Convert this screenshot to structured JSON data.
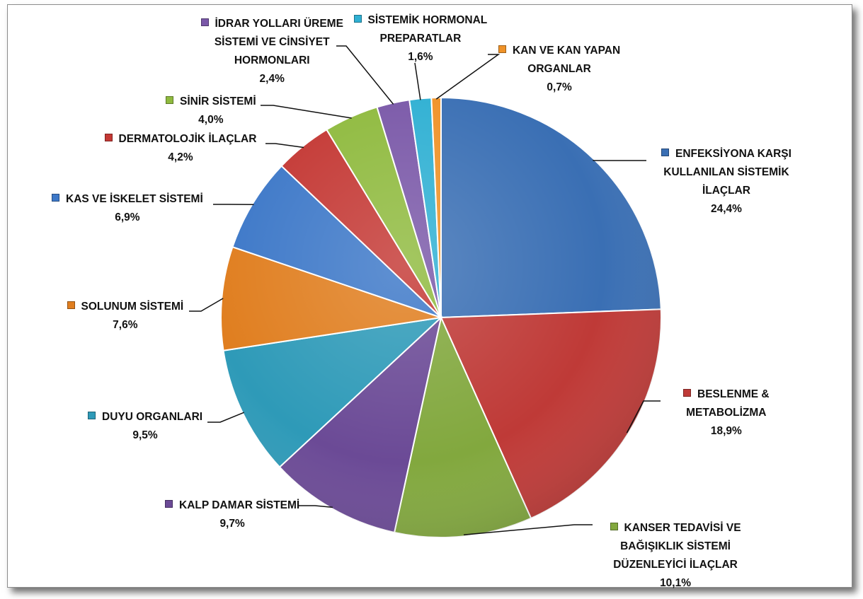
{
  "chart_data": {
    "type": "pie",
    "title": "",
    "slices": [
      {
        "name": "ENFEKSİYONA KARŞI KULLANILAN SİSTEMİK İLAÇLAR",
        "lines": [
          "ENFEKSİYONA KARŞI",
          "KULLANILAN SİSTEMİK",
          "İLAÇLAR"
        ],
        "value": 24.4,
        "pct_label": "24,4%",
        "color": "#3a6fb4"
      },
      {
        "name": "BESLENME & METABOLİZMA",
        "lines": [
          "BESLENME &",
          "METABOLİZMA"
        ],
        "value": 18.9,
        "pct_label": "18,9%",
        "color": "#bf3a37"
      },
      {
        "name": "KANSER TEDAVİSİ VE BAĞIŞIKLIK SİSTEMİ DÜZENLEYİCİ İLAÇLAR",
        "lines": [
          "KANSER TEDAVİSİ VE",
          "BAĞIŞIKLIK SİSTEMİ",
          "DÜZENLEYİCİ İLAÇLAR"
        ],
        "value": 10.1,
        "pct_label": "10,1%",
        "color": "#82a83e"
      },
      {
        "name": "KALP DAMAR SİSTEMİ",
        "lines": [
          "KALP DAMAR SİSTEMİ"
        ],
        "value": 9.7,
        "pct_label": "9,7%",
        "color": "#6b4a96"
      },
      {
        "name": "DUYU ORGANLARI",
        "lines": [
          "DUYU ORGANLARI"
        ],
        "value": 9.5,
        "pct_label": "9,5%",
        "color": "#2e9ab8"
      },
      {
        "name": "SOLUNUM SİSTEMİ",
        "lines": [
          "SOLUNUM SİSTEMİ"
        ],
        "value": 7.6,
        "pct_label": "7,6%",
        "color": "#e07e1f"
      },
      {
        "name": "KAS VE İSKELET SİSTEMİ",
        "lines": [
          "KAS VE İSKELET SİSTEMİ"
        ],
        "value": 6.9,
        "pct_label": "6,9%",
        "color": "#3d78c8"
      },
      {
        "name": "DERMATOLOJİK İLAÇLAR",
        "lines": [
          "DERMATOLOJİK İLAÇLAR"
        ],
        "value": 4.2,
        "pct_label": "4,2%",
        "color": "#c43834"
      },
      {
        "name": "SİNİR SİSTEMİ",
        "lines": [
          "SİNİR SİSTEMİ"
        ],
        "value": 4.0,
        "pct_label": "4,0%",
        "color": "#8fba3e"
      },
      {
        "name": "İDRAR YOLLARI ÜREME SİSTEMİ VE CİNSİYET HORMONLARI",
        "lines": [
          "İDRAR YOLLARI ÜREME",
          "SİSTEMİ VE CİNSİYET",
          "HORMONLARI"
        ],
        "value": 2.4,
        "pct_label": "2,4%",
        "color": "#7a58a8"
      },
      {
        "name": "SİSTEMİK HORMONAL PREPARATLAR",
        "lines": [
          "SİSTEMİK HORMONAL",
          "PREPARATLAR"
        ],
        "value": 1.6,
        "pct_label": "1,6%",
        "color": "#2fb0d3"
      },
      {
        "name": "KAN VE KAN YAPAN ORGANLAR",
        "lines": [
          "KAN VE KAN YAPAN",
          "ORGANLAR"
        ],
        "value": 0.7,
        "pct_label": "0,7%",
        "color": "#ef9228"
      }
    ],
    "legend": "none",
    "data_labels": "category name and percentage, outside with leader lines"
  }
}
